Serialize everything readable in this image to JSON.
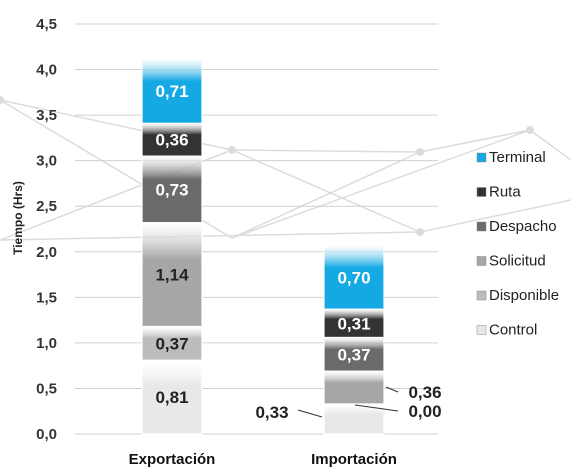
{
  "chart_data": {
    "type": "bar",
    "stacked": true,
    "ylabel": "Tiempo (Hrs)",
    "xlabel": "",
    "ylim": [
      0,
      4.5
    ],
    "yticks": [
      "0,0",
      "0,5",
      "1,0",
      "1,5",
      "2,0",
      "2,5",
      "3,0",
      "3,5",
      "4,0",
      "4,5"
    ],
    "categories": [
      "Exportación",
      "Importación"
    ],
    "grid": true,
    "legend_position": "right",
    "series": [
      {
        "name": "Control",
        "values": [
          0.81,
          0.33
        ],
        "labels": [
          "0,81",
          "0,33"
        ],
        "color": "#e8e8e8"
      },
      {
        "name": "Disponible",
        "values": [
          0.37,
          0.0
        ],
        "labels": [
          "0,37",
          "0,00"
        ],
        "color": "#bcbcbc"
      },
      {
        "name": "Solicitud",
        "values": [
          1.14,
          0.36
        ],
        "labels": [
          "1,14",
          "0,36"
        ],
        "color": "#a6a6a6"
      },
      {
        "name": "Despacho",
        "values": [
          0.73,
          0.37
        ],
        "labels": [
          "0,73",
          "0,37"
        ],
        "color": "#6b6b6b"
      },
      {
        "name": "Ruta",
        "values": [
          0.36,
          0.31
        ],
        "labels": [
          "0,36",
          "0,31"
        ],
        "color": "#333333"
      },
      {
        "name": "Terminal",
        "values": [
          0.71,
          0.7
        ],
        "labels": [
          "0,71",
          "0,70"
        ],
        "color": "#14a9e3"
      }
    ]
  }
}
